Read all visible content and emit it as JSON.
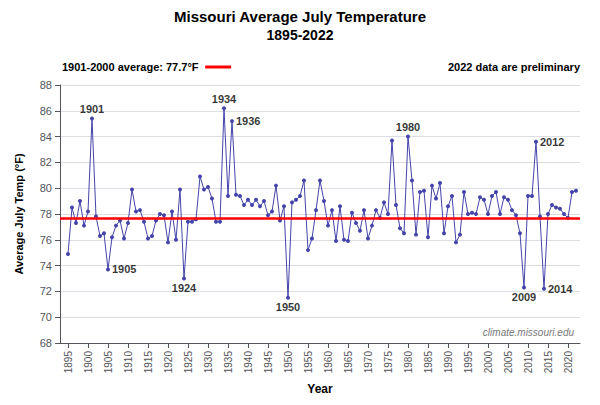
{
  "chart_data": {
    "type": "line",
    "title": "Missouri Average July Temperature",
    "subtitle": "1895-2022",
    "xlabel": "Year",
    "ylabel": "Average July Temp (°F)",
    "x": [
      1895,
      1896,
      1897,
      1898,
      1899,
      1900,
      1901,
      1902,
      1903,
      1904,
      1905,
      1906,
      1907,
      1908,
      1909,
      1910,
      1911,
      1912,
      1913,
      1914,
      1915,
      1916,
      1917,
      1918,
      1919,
      1920,
      1921,
      1922,
      1923,
      1924,
      1925,
      1926,
      1927,
      1928,
      1929,
      1930,
      1931,
      1932,
      1933,
      1934,
      1935,
      1936,
      1937,
      1938,
      1939,
      1940,
      1941,
      1942,
      1943,
      1944,
      1945,
      1946,
      1947,
      1948,
      1949,
      1950,
      1951,
      1952,
      1953,
      1954,
      1955,
      1956,
      1957,
      1958,
      1959,
      1960,
      1961,
      1962,
      1963,
      1964,
      1965,
      1966,
      1967,
      1968,
      1969,
      1970,
      1971,
      1972,
      1973,
      1974,
      1975,
      1976,
      1977,
      1978,
      1979,
      1980,
      1981,
      1982,
      1983,
      1984,
      1985,
      1986,
      1987,
      1988,
      1989,
      1990,
      1991,
      1992,
      1993,
      1994,
      1995,
      1996,
      1997,
      1998,
      1999,
      2000,
      2001,
      2002,
      2003,
      2004,
      2005,
      2006,
      2007,
      2008,
      2009,
      2010,
      2011,
      2012,
      2013,
      2014,
      2015,
      2016,
      2017,
      2018,
      2019,
      2020,
      2021,
      2022
    ],
    "values": [
      74.9,
      78.5,
      77.3,
      79.0,
      77.1,
      78.2,
      85.4,
      77.8,
      76.3,
      76.5,
      73.7,
      76.2,
      77.1,
      77.5,
      76.1,
      77.3,
      79.9,
      78.2,
      78.3,
      77.4,
      76.1,
      76.3,
      77.5,
      78.0,
      77.9,
      75.8,
      78.2,
      76.0,
      79.9,
      73.0,
      77.4,
      77.4,
      77.6,
      80.9,
      79.9,
      80.1,
      79.2,
      77.4,
      77.4,
      86.2,
      79.4,
      85.2,
      79.5,
      79.4,
      78.7,
      79.1,
      78.7,
      79.1,
      78.6,
      79.0,
      77.9,
      78.2,
      80.2,
      77.5,
      78.6,
      71.5,
      78.9,
      79.1,
      79.4,
      80.6,
      75.2,
      76.1,
      78.3,
      80.6,
      79.0,
      77.1,
      78.3,
      75.9,
      78.6,
      76.0,
      75.9,
      78.1,
      77.3,
      76.7,
      78.3,
      76.1,
      77.1,
      78.3,
      77.7,
      78.9,
      78.0,
      83.7,
      78.7,
      76.9,
      76.5,
      84.0,
      80.6,
      76.4,
      79.7,
      79.8,
      76.2,
      80.2,
      79.2,
      80.4,
      76.5,
      78.6,
      79.4,
      75.8,
      76.4,
      79.7,
      78.0,
      78.1,
      78.0,
      79.3,
      79.1,
      78.0,
      79.4,
      79.7,
      78.0,
      79.3,
      79.1,
      78.3,
      77.9,
      76.5,
      72.3,
      79.4,
      79.4,
      83.6,
      77.8,
      72.2,
      78.0,
      78.7,
      78.5,
      78.4,
      78.0,
      77.7,
      79.7,
      79.8
    ],
    "color": "#4444aa",
    "marker": "o",
    "xlim": [
      1893,
      2023
    ],
    "xticks": [
      1895,
      1900,
      1905,
      1910,
      1915,
      1920,
      1925,
      1930,
      1935,
      1940,
      1945,
      1950,
      1955,
      1960,
      1965,
      1970,
      1975,
      1980,
      1985,
      1990,
      1995,
      2000,
      2005,
      2010,
      2015,
      2020
    ],
    "ylim": [
      68.0,
      88.0
    ],
    "yticks": [
      68.0,
      70.0,
      72.0,
      74.0,
      76.0,
      78.0,
      80.0,
      82.0,
      84.0,
      86.0,
      88.0
    ],
    "grid": true,
    "reference_lines": [
      {
        "y": 77.7,
        "label": "1901-2000 average: 77.7°F",
        "color": "#ff0000"
      }
    ],
    "notes": [
      "2022 data are preliminary",
      "climate.missouri.edu"
    ],
    "annotations": [
      {
        "text": "1901",
        "x": 1901,
        "y": 85.4
      },
      {
        "text": "1905",
        "x": 1905,
        "y": 73.7
      },
      {
        "text": "1924",
        "x": 1924,
        "y": 73.0
      },
      {
        "text": "1934",
        "x": 1934,
        "y": 86.2
      },
      {
        "text": "1936",
        "x": 1936,
        "y": 85.2
      },
      {
        "text": "1950",
        "x": 1950,
        "y": 71.5
      },
      {
        "text": "1980",
        "x": 1980,
        "y": 84.0
      },
      {
        "text": "2009",
        "x": 2009,
        "y": 72.3
      },
      {
        "text": "2012",
        "x": 2012,
        "y": 83.6
      },
      {
        "text": "2014",
        "x": 2014,
        "y": 72.2
      }
    ]
  }
}
